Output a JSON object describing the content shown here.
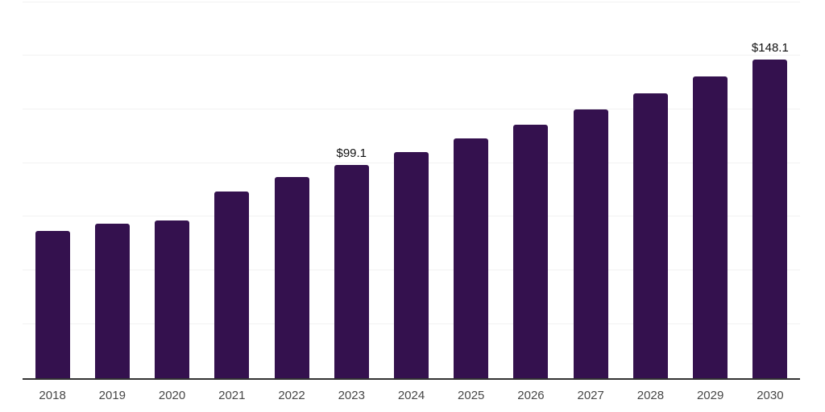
{
  "chart_data": {
    "type": "bar",
    "categories": [
      "2018",
      "2019",
      "2020",
      "2021",
      "2022",
      "2023",
      "2024",
      "2025",
      "2026",
      "2027",
      "2028",
      "2029",
      "2030"
    ],
    "values": [
      68.6,
      71.7,
      73.3,
      86.8,
      93.4,
      99.1,
      105.0,
      111.3,
      117.9,
      124.9,
      132.3,
      140.1,
      148.1
    ],
    "data_labels": [
      "",
      "",
      "",
      "",
      "",
      "$99.1",
      "",
      "",
      "",
      "",
      "",
      "",
      "$148.1"
    ],
    "ylim": [
      0,
      175
    ],
    "grid_step": 25,
    "grid": "horizontal",
    "legend": "none",
    "colors": {
      "bar": "#34114E",
      "gridline": "#F2F2F2",
      "axis_line": "#333333",
      "tick_label": "#474747",
      "data_label": "#111111"
    }
  }
}
